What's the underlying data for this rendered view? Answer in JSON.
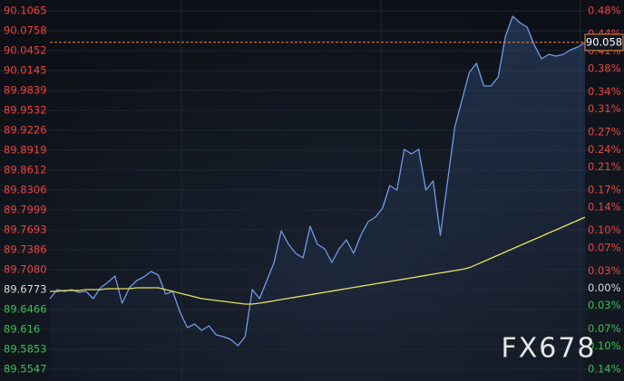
{
  "chart_data": {
    "type": "line",
    "watermark": "FX678",
    "last_price": 90.058,
    "ylim": [
      89.5547,
      90.1065
    ],
    "yticks": [
      90.1065,
      90.0758,
      90.0452,
      90.0145,
      89.9839,
      89.9532,
      89.9226,
      89.8919,
      89.8612,
      89.8306,
      89.7999,
      89.7693,
      89.7386,
      {
        "value": 89.708,
        "label": "89.7080"
      },
      89.6773,
      89.6466,
      89.616,
      89.5853,
      89.5547
    ],
    "y2lim": [
      -0.14,
      0.48
    ],
    "y2ticks": [
      {
        "value": 0.48,
        "label": "0.48%"
      },
      {
        "value": 0.44,
        "label": "0.44%"
      },
      {
        "value": 0.41,
        "label": "0.41%"
      },
      {
        "value": 0.38,
        "label": "0.38%"
      },
      {
        "value": 0.34,
        "label": "0.34%"
      },
      {
        "value": 0.31,
        "label": "0.31%"
      },
      {
        "value": 0.27,
        "label": "0.27%"
      },
      {
        "value": 0.24,
        "label": "0.24%"
      },
      {
        "value": 0.21,
        "label": "0.21%"
      },
      {
        "value": 0.17,
        "label": "0.17%"
      },
      {
        "value": 0.14,
        "label": "0.14%"
      },
      {
        "value": 0.1,
        "label": "0.10%"
      },
      {
        "value": 0.07,
        "label": "0.07%"
      },
      {
        "value": 0.03,
        "label": "0.03%"
      },
      {
        "value": 0.0,
        "label": "0.00%"
      },
      {
        "value": -0.03,
        "label": "0.03%"
      },
      {
        "value": -0.07,
        "label": "0.07%"
      },
      {
        "value": -0.1,
        "label": "0.10%"
      },
      {
        "value": -0.14,
        "label": "0.14%"
      }
    ],
    "up_color": "#e8453c",
    "down_color": "#3cc04f",
    "flat_color": "#d8d8d8",
    "grid": true,
    "series": [
      {
        "color": "#6f9be8",
        "area": true,
        "values": [
          89.6634,
          89.6773,
          89.6745,
          89.6773,
          89.6732,
          89.6745,
          89.6634,
          89.6801,
          89.6885,
          89.6982,
          89.6564,
          89.6801,
          89.6913,
          89.6968,
          89.7052,
          89.6996,
          89.6704,
          89.6745,
          89.6425,
          89.6188,
          89.6244,
          89.6146,
          89.6216,
          89.6077,
          89.6049,
          89.6007,
          89.5909,
          89.6049,
          89.6773,
          89.6634,
          89.6913,
          89.7191,
          89.7679,
          89.747,
          89.7331,
          89.7261,
          89.7749,
          89.747,
          89.74,
          89.7191,
          89.74,
          89.754,
          89.7331,
          89.7609,
          89.7818,
          89.7888,
          89.8027,
          89.8376,
          89.8306,
          89.8933,
          89.8863,
          89.8933,
          89.8306,
          89.8445,
          89.7609,
          89.8445,
          89.9281,
          89.9699,
          90.0117,
          90.0257,
          89.9908,
          89.9908,
          90.0048,
          90.0675,
          90.0981,
          90.0884,
          90.0814,
          90.0536,
          90.0326,
          90.0396,
          90.0368,
          90.0396,
          90.0466,
          90.0508,
          90.0577
        ]
      },
      {
        "color": "#e8e05a",
        "area": false,
        "values": [
          89.6745,
          89.6745,
          89.6759,
          89.6759,
          89.6759,
          89.6773,
          89.6773,
          89.6773,
          89.6787,
          89.6787,
          89.6787,
          89.6787,
          89.6801,
          89.6801,
          89.6801,
          89.6801,
          89.6773,
          89.6745,
          89.6718,
          89.669,
          89.6662,
          89.6634,
          89.662,
          89.6606,
          89.6592,
          89.6578,
          89.6564,
          89.655,
          89.655,
          89.6564,
          89.6583,
          89.6601,
          89.662,
          89.6639,
          89.6657,
          89.6676,
          89.6694,
          89.6713,
          89.6732,
          89.675,
          89.6769,
          89.6787,
          89.6806,
          89.6825,
          89.6843,
          89.6862,
          89.688,
          89.6899,
          89.6918,
          89.6936,
          89.6955,
          89.6973,
          89.6992,
          89.7011,
          89.7029,
          89.7048,
          89.7066,
          89.7085,
          89.711,
          89.7159,
          89.7207,
          89.7256,
          89.7304,
          89.7353,
          89.7402,
          89.745,
          89.7499,
          89.7548,
          89.7596,
          89.7645,
          89.7693,
          89.7742,
          89.7791,
          89.7839,
          89.7888
        ]
      }
    ]
  }
}
